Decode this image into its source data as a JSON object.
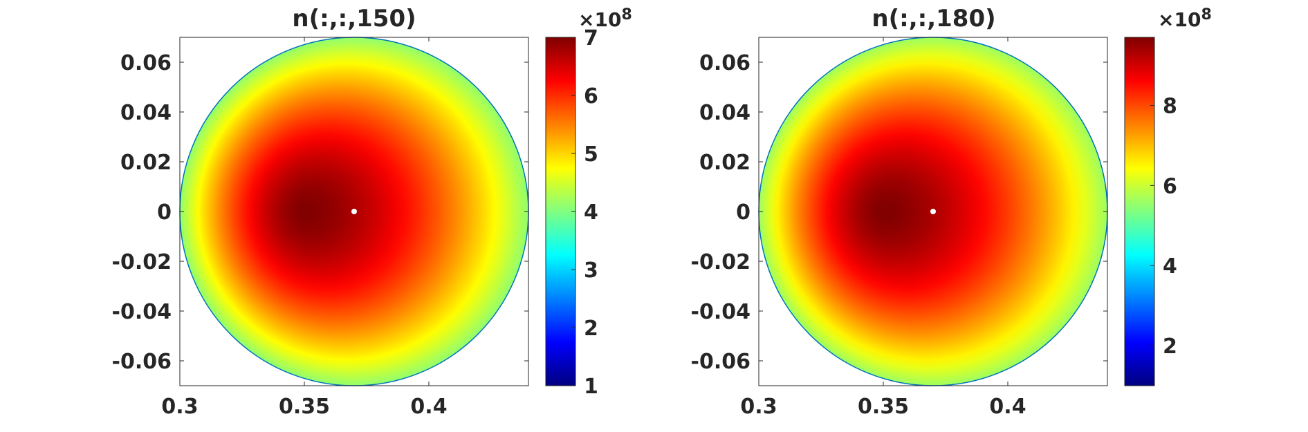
{
  "chart_data": [
    {
      "type": "heatmap",
      "title": "n(:,:,150)",
      "xlabel": "",
      "ylabel": "",
      "xlim": [
        0.3,
        0.44
      ],
      "ylim": [
        -0.07,
        0.07
      ],
      "xticks": [
        0.3,
        0.35,
        0.4
      ],
      "xtick_labels": [
        "0.3",
        "0.35",
        "0.4"
      ],
      "yticks": [
        0.06,
        0.04,
        0.02,
        0,
        -0.02,
        -0.04,
        -0.06
      ],
      "ytick_labels": [
        "0.06",
        "0.04",
        "0.02",
        "0",
        "-0.02",
        "-0.04",
        "-0.06"
      ],
      "circle": {
        "center": [
          0.37,
          0
        ],
        "radius": 0.07
      },
      "peak_location": [
        0.35,
        0
      ],
      "peak_value": 700000000.0,
      "edge_min_value": 410000000.0,
      "marker": {
        "x": 0.37,
        "y": 0,
        "color": "#ffffff"
      },
      "colorbar": {
        "min": 100000000.0,
        "max": 700000000.0,
        "ticks": [
          1,
          2,
          3,
          4,
          5,
          6,
          7
        ],
        "tick_labels": [
          "1",
          "2",
          "3",
          "4",
          "5",
          "6",
          "7"
        ],
        "multiplier_base": "×10",
        "multiplier_exponent": "8",
        "colormap": "jet"
      }
    },
    {
      "type": "heatmap",
      "title": "n(:,:,180)",
      "xlabel": "",
      "ylabel": "",
      "xlim": [
        0.3,
        0.44
      ],
      "ylim": [
        -0.07,
        0.07
      ],
      "xticks": [
        0.3,
        0.35,
        0.4
      ],
      "xtick_labels": [
        "0.3",
        "0.35",
        "0.4"
      ],
      "yticks": [
        0.06,
        0.04,
        0.02,
        0,
        -0.02,
        -0.04,
        -0.06
      ],
      "ytick_labels": [
        "0.06",
        "0.04",
        "0.02",
        "0",
        "-0.02",
        "-0.04",
        "-0.06"
      ],
      "circle": {
        "center": [
          0.37,
          0
        ],
        "radius": 0.07
      },
      "peak_location": [
        0.35,
        0
      ],
      "peak_value": 970000000.0,
      "edge_min_value": 560000000.0,
      "marker": {
        "x": 0.37,
        "y": 0,
        "color": "#ffffff"
      },
      "colorbar": {
        "min": 100000000.0,
        "max": 970000000.0,
        "ticks": [
          2,
          4,
          6,
          8
        ],
        "tick_labels": [
          "2",
          "4",
          "6",
          "8"
        ],
        "multiplier_base": "×10",
        "multiplier_exponent": "8",
        "colormap": "jet"
      }
    }
  ],
  "colors": {
    "axis": "#262626",
    "circle_edge": "#0072bd",
    "marker": "#ffffff",
    "background": "#ffffff"
  }
}
